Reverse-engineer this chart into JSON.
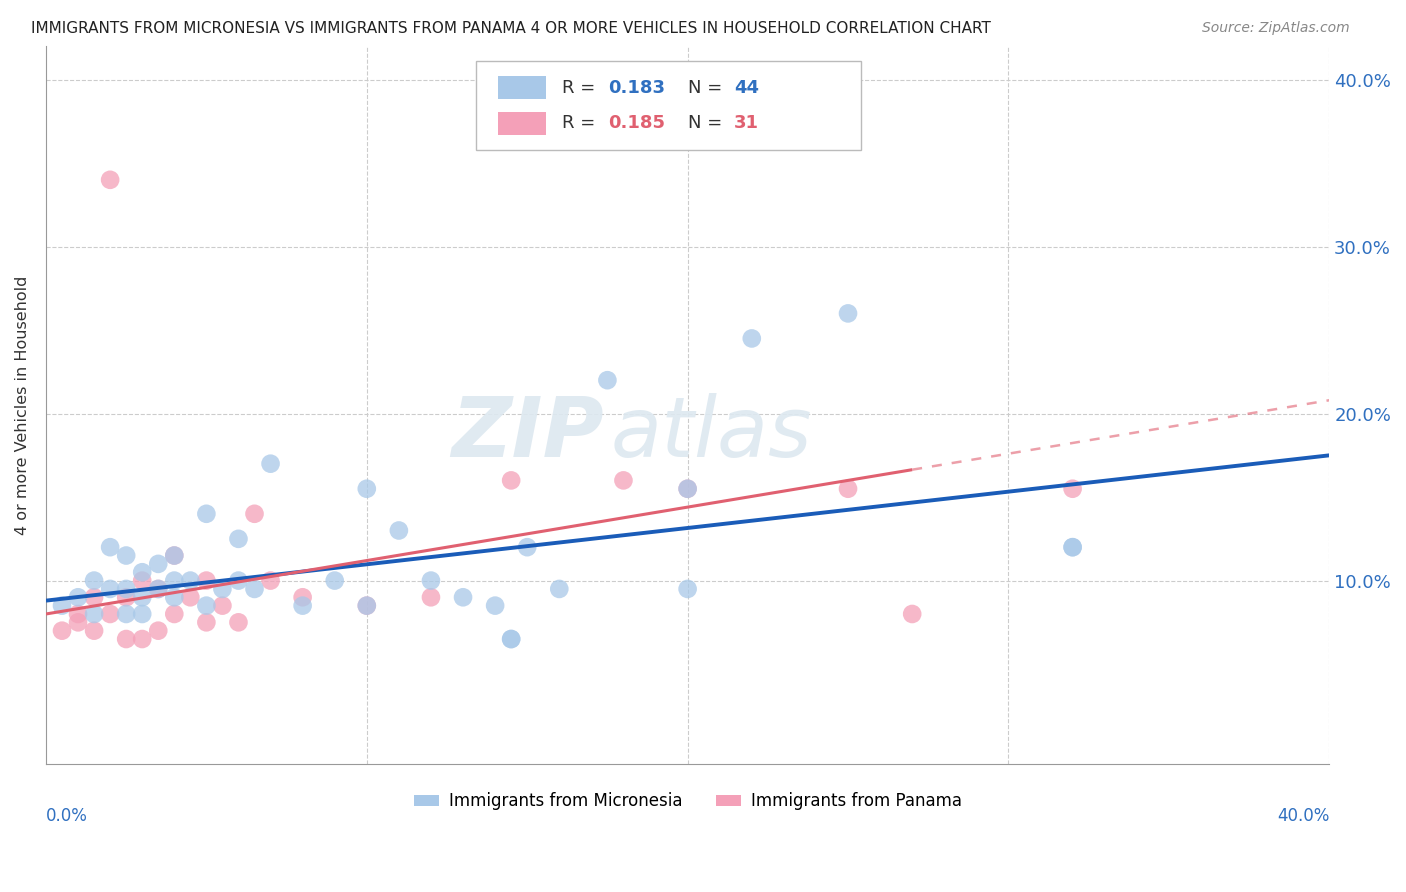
{
  "title": "IMMIGRANTS FROM MICRONESIA VS IMMIGRANTS FROM PANAMA 4 OR MORE VEHICLES IN HOUSEHOLD CORRELATION CHART",
  "source": "Source: ZipAtlas.com",
  "ylabel": "4 or more Vehicles in Household",
  "xlim": [
    0.0,
    0.4
  ],
  "ylim": [
    -0.01,
    0.42
  ],
  "ytick_vals": [
    0.0,
    0.1,
    0.2,
    0.3,
    0.4
  ],
  "ytick_labels": [
    "",
    "10.0%",
    "20.0%",
    "30.0%",
    "40.0%"
  ],
  "legend_r1": "0.183",
  "legend_n1": "44",
  "legend_r2": "0.185",
  "legend_n2": "31",
  "color_micronesia": "#a8c8e8",
  "color_panama": "#f4a0b8",
  "line_color_micronesia": "#1a5cb8",
  "line_color_panama": "#e06070",
  "watermark_zip": "ZIP",
  "watermark_atlas": "atlas",
  "mic_x": [
    0.005,
    0.01,
    0.015,
    0.015,
    0.02,
    0.02,
    0.025,
    0.025,
    0.025,
    0.03,
    0.03,
    0.03,
    0.035,
    0.035,
    0.04,
    0.04,
    0.04,
    0.045,
    0.05,
    0.05,
    0.055,
    0.06,
    0.06,
    0.065,
    0.07,
    0.08,
    0.09,
    0.1,
    0.1,
    0.11,
    0.12,
    0.13,
    0.14,
    0.145,
    0.145,
    0.15,
    0.16,
    0.175,
    0.2,
    0.2,
    0.22,
    0.25,
    0.32,
    0.32
  ],
  "mic_y": [
    0.085,
    0.09,
    0.08,
    0.1,
    0.095,
    0.12,
    0.08,
    0.095,
    0.115,
    0.08,
    0.09,
    0.105,
    0.095,
    0.11,
    0.09,
    0.1,
    0.115,
    0.1,
    0.085,
    0.14,
    0.095,
    0.1,
    0.125,
    0.095,
    0.17,
    0.085,
    0.1,
    0.085,
    0.155,
    0.13,
    0.1,
    0.09,
    0.085,
    0.065,
    0.065,
    0.12,
    0.095,
    0.22,
    0.095,
    0.155,
    0.245,
    0.26,
    0.12,
    0.12
  ],
  "pan_x": [
    0.005,
    0.01,
    0.01,
    0.015,
    0.015,
    0.02,
    0.025,
    0.025,
    0.03,
    0.03,
    0.035,
    0.035,
    0.04,
    0.04,
    0.045,
    0.05,
    0.05,
    0.055,
    0.06,
    0.065,
    0.07,
    0.08,
    0.1,
    0.12,
    0.145,
    0.18,
    0.2,
    0.25,
    0.27,
    0.32,
    0.02
  ],
  "pan_y": [
    0.07,
    0.075,
    0.08,
    0.07,
    0.09,
    0.08,
    0.065,
    0.09,
    0.065,
    0.1,
    0.07,
    0.095,
    0.08,
    0.115,
    0.09,
    0.075,
    0.1,
    0.085,
    0.075,
    0.14,
    0.1,
    0.09,
    0.085,
    0.09,
    0.16,
    0.16,
    0.155,
    0.155,
    0.08,
    0.155,
    0.34
  ]
}
